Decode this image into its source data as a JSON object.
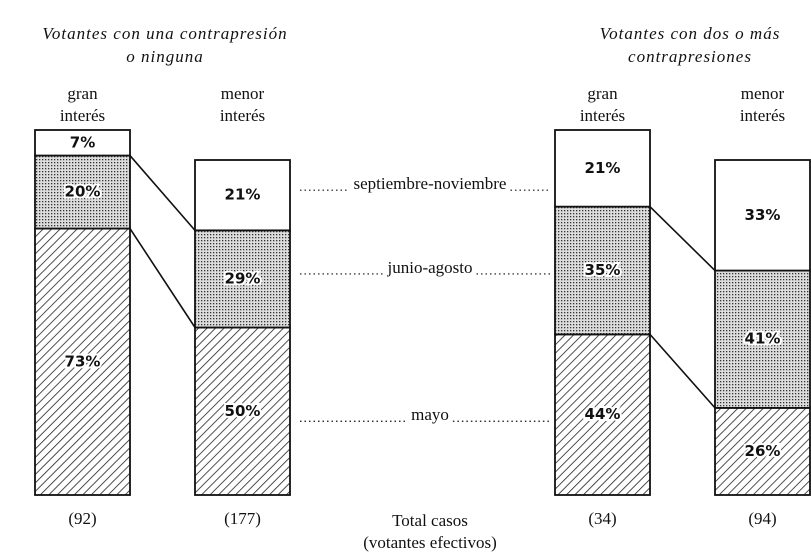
{
  "chart_data": {
    "type": "stacked_bar_100",
    "groups": [
      {
        "title": [
          "Votantes con una contrapresión",
          "o ninguna"
        ],
        "bars": [
          {
            "label": [
              "gran",
              "interés"
            ],
            "cases": "(92)"
          },
          {
            "label": [
              "menor",
              "interés"
            ],
            "cases": "(177)"
          }
        ]
      },
      {
        "title": [
          "Votantes con dos o más",
          "contrapresiones"
        ],
        "bars": [
          {
            "label": [
              "gran",
              "interés"
            ],
            "cases": "(34)"
          },
          {
            "label": [
              "menor",
              "interés"
            ],
            "cases": "(94)"
          }
        ]
      }
    ],
    "series": [
      {
        "name": "mayo",
        "color": "#ffffff",
        "pattern": "hatch",
        "values": [
          73,
          50,
          44,
          26
        ],
        "value_labels": [
          "73%",
          "50%",
          "44%",
          "26%"
        ]
      },
      {
        "name": "junio-agosto",
        "color": "#ffffff",
        "pattern": "dots",
        "values": [
          20,
          29,
          35,
          41
        ],
        "value_labels": [
          "20%",
          "29%",
          "35%",
          "41%"
        ]
      },
      {
        "name": "septiembre-noviembre",
        "color": "#ffffff",
        "pattern": "none",
        "values": [
          7,
          21,
          21,
          33
        ],
        "value_labels": [
          "7%",
          "21%",
          "21%",
          "33%"
        ]
      }
    ],
    "ylim": [
      0,
      100
    ],
    "footer": [
      "Total casos",
      "(votantes efectivos)"
    ]
  }
}
